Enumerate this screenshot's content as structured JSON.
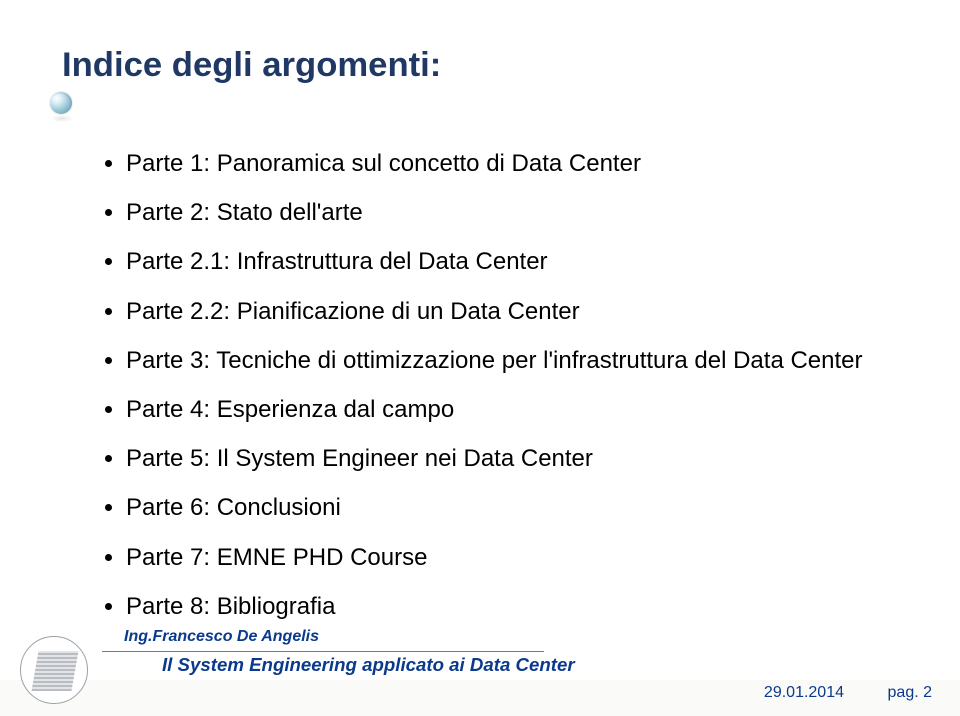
{
  "title": {
    "text": "Indice degli argomenti:",
    "color": "#203864",
    "fontsize_pt": 26
  },
  "bullets": {
    "color": "#000000",
    "fontsize_pt": 18,
    "items": [
      "Parte 1: Panoramica sul concetto di Data Center",
      "Parte 2: Stato dell'arte",
      "Parte 2.1: Infrastruttura del Data Center",
      "Parte 2.2: Pianificazione di un Data Center",
      "Parte 3: Tecniche di ottimizzazione per l'infrastruttura del Data Center",
      "Parte 4: Esperienza dal campo",
      "Parte 5: Il System Engineer nei Data Center",
      "Parte 6: Conclusioni",
      "Parte 7: EMNE PHD Course",
      "Parte 8: Bibliografia"
    ]
  },
  "footer": {
    "author": "Ing.Francesco De Angelis",
    "author_color": "#0b3a8c",
    "author_fontsize_pt": 12,
    "title": "Il System Engineering applicato ai Data Center",
    "title_color": "#0b3a8c",
    "title_fontsize_pt": 14,
    "date": "29.01.2014",
    "date_color": "#0b3a8c",
    "date_fontsize_pt": 12,
    "page": "pag. 2",
    "page_color": "#0b3a8c",
    "page_fontsize_pt": 12,
    "bar_color": "#fafaf8",
    "line_color": "#7a7a7a"
  },
  "background_color": "#ffffff"
}
